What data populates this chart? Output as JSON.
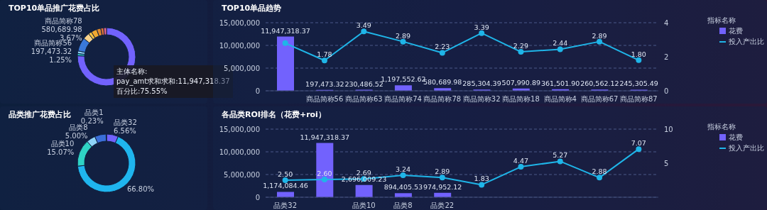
{
  "chart_data": [
    {
      "type": "donut",
      "title": "TOP10单品推广花费占比",
      "categories": [
        null,
        "商品简称56",
        null,
        null,
        "商品简称78",
        null,
        null,
        null,
        null,
        null
      ],
      "values": [
        11947318.37,
        197473.32,
        230486.52,
        1197552.62,
        580689.98,
        285304.39,
        507990.89,
        361501.9,
        260562.12,
        245305.49
      ],
      "colors": [
        "#7262fd",
        "#2ec7c9",
        "#8fd3f7",
        "#3a78d8",
        "#f7d28c",
        "#f5c242",
        "#f0a830",
        "#e28a2b",
        "#d9703a",
        "#e0628f"
      ],
      "value_labels": [
        null,
        "197,473.32\n1.25%",
        null,
        null,
        "580,689.98\n3.67%",
        null,
        null,
        null,
        null,
        null
      ],
      "annotations": [
        "主体名称:",
        "pay_amt求和求和:11,947,318.37",
        "百分比:75.55%"
      ]
    },
    {
      "type": "bar",
      "title": "TOP10单品趋势",
      "categories": [
        null,
        "商品简称56",
        "商品简称63",
        "商品简称74",
        "商品简称78",
        "商品简称32",
        "商品简称18",
        "商品简称4",
        "商品简称67",
        "商品简称87"
      ],
      "legend_title": "指标名称",
      "legend": "right",
      "grid": "y",
      "marker": "circle",
      "ylim": [
        0,
        15000000
      ],
      "yticks": [
        {
          "value": 0,
          "label": "0"
        },
        {
          "value": 5000000,
          "label": "5,000,000"
        },
        {
          "value": 10000000,
          "label": "10,000,000"
        },
        {
          "value": 15000000,
          "label": "15,000,000"
        }
      ],
      "y2lim": [
        0,
        4
      ],
      "y2ticks": [
        0,
        2,
        4
      ],
      "series": [
        {
          "name": "花费",
          "type": "bar",
          "color": "#7262fd",
          "values": [
            11947318.37,
            197473.32,
            230486.52,
            1197552.62,
            580689.98,
            285304.39,
            507990.89,
            361501.9,
            260562.12,
            245305.49
          ],
          "value_labels": [
            "11,947,318.37",
            "197,473.32",
            "230,486.52",
            "1,197,552.62",
            "580,689.98",
            "285,304.39",
            "507,990.89",
            "361,501.90",
            "260,562.12",
            "245,305.49"
          ]
        },
        {
          "name": "投入产出比",
          "type": "line",
          "axis": "y2",
          "color": "#1fb5e8",
          "values": [
            2.8,
            1.78,
            3.49,
            2.89,
            2.23,
            3.39,
            2.29,
            2.44,
            2.89,
            1.8
          ],
          "value_labels": [
            null,
            "1.78",
            "3.49",
            "2.89",
            "2.23",
            "3.39",
            "2.29",
            "2.44",
            "2.89",
            "1.80"
          ]
        }
      ]
    },
    {
      "type": "donut",
      "title": "品类推广花费占比",
      "categories": [
        "品类32",
        null,
        "品类10",
        "品类8",
        null,
        "品类1"
      ],
      "values": [
        6.56,
        66.8,
        15.07,
        5.0,
        6.34,
        0.23
      ],
      "colors": [
        "#7262fd",
        "#1fb5ee",
        "#2fd3c4",
        "#8fd3f7",
        "#3a6fd8",
        "#4a4a6a"
      ],
      "value_labels": [
        "6.56%",
        "66.80%",
        "15.07%",
        "5.00%",
        null,
        "0.23%"
      ]
    },
    {
      "type": "bar",
      "title": "各品类ROI排名（花费+roi）",
      "categories": [
        "品类32",
        null,
        "品类10",
        "品类8",
        "品类22",
        null,
        null,
        null,
        null,
        null
      ],
      "legend_title": "指标名称",
      "legend": "right",
      "grid": "y",
      "marker": "circle",
      "ylim": [
        0,
        15000000
      ],
      "yticks": [
        {
          "value": 0,
          "label": "0"
        },
        {
          "value": 5000000,
          "label": "5,000,000"
        },
        {
          "value": 10000000,
          "label": "10,000,000"
        },
        {
          "value": 15000000,
          "label": "15,000,000"
        }
      ],
      "y2lim": [
        0,
        10
      ],
      "y2ticks": [
        5,
        10
      ],
      "series": [
        {
          "name": "花费",
          "type": "bar",
          "color": "#7262fd",
          "values": [
            1174084.46,
            11947318.37,
            2696009.23,
            894405.53,
            974952.12,
            null,
            null,
            null,
            null,
            null
          ],
          "value_labels": [
            "1,174,084.46",
            "11,947,318.37",
            "2,696,009.23",
            "894,405.53",
            "974,952.12",
            null,
            null,
            null,
            null,
            null
          ]
        },
        {
          "name": "投入产出比",
          "type": "line",
          "axis": "y2",
          "color": "#1fb5e8",
          "values": [
            2.5,
            2.6,
            2.69,
            3.24,
            2.89,
            1.83,
            4.47,
            5.27,
            2.88,
            7.07
          ],
          "value_labels": [
            "2.50",
            "2.60",
            "2.69",
            "3.24",
            "2.89",
            "1.83",
            "4.47",
            "5.27",
            "2.88",
            "7.07"
          ]
        }
      ]
    }
  ]
}
